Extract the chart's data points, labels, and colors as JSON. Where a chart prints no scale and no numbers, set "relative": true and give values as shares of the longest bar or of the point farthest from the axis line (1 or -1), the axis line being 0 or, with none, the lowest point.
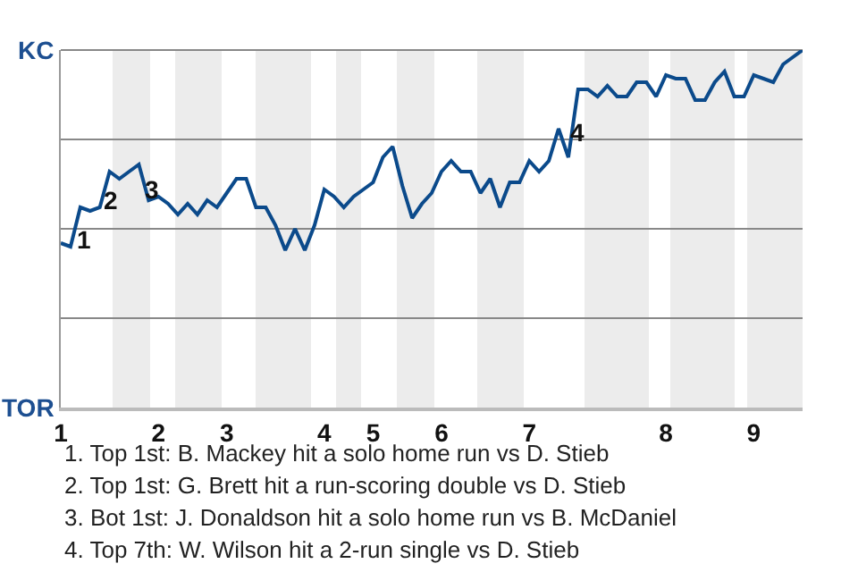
{
  "chart_data": {
    "type": "line",
    "relative": true,
    "categories": [
      "1",
      null,
      null,
      null,
      null,
      null,
      null,
      null,
      null,
      null,
      "2",
      null,
      null,
      null,
      null,
      null,
      null,
      "3",
      null,
      null,
      null,
      null,
      null,
      null,
      null,
      null,
      null,
      "4",
      null,
      null,
      null,
      null,
      "5",
      null,
      null,
      null,
      null,
      null,
      null,
      "6",
      null,
      null,
      null,
      null,
      null,
      null,
      null,
      null,
      "7",
      null,
      null,
      null,
      null,
      null,
      null,
      null,
      null,
      null,
      null,
      null,
      null,
      null,
      "8",
      null,
      null,
      null,
      null,
      null,
      null,
      null,
      null,
      "9",
      null,
      null,
      null,
      null,
      null
    ],
    "series": [
      {
        "color": "#0b4a8b",
        "values": [
          0.46,
          0.45,
          0.56,
          0.55,
          0.56,
          0.66,
          0.64,
          0.66,
          0.68,
          0.58,
          0.59,
          0.57,
          0.54,
          0.57,
          0.54,
          0.58,
          0.56,
          0.6,
          0.64,
          0.64,
          0.56,
          0.56,
          0.51,
          0.44,
          0.5,
          0.44,
          0.51,
          0.61,
          0.59,
          0.56,
          0.59,
          0.61,
          0.63,
          0.7,
          0.73,
          0.62,
          0.53,
          0.57,
          0.6,
          0.66,
          0.69,
          0.66,
          0.66,
          0.6,
          0.64,
          0.56,
          0.63,
          0.63,
          0.69,
          0.66,
          0.69,
          0.78,
          0.7,
          0.89,
          0.89,
          0.87,
          0.9,
          0.87,
          0.87,
          0.91,
          0.91,
          0.87,
          0.93,
          0.92,
          0.92,
          0.86,
          0.86,
          0.91,
          0.94,
          0.87,
          0.87,
          0.93,
          0.92,
          0.91,
          0.96,
          0.98,
          1
        ]
      }
    ],
    "grid": "y",
    "legend": false,
    "marker": "none",
    "line_style": "solid",
    "annotations": [
      "KC",
      "TOR",
      "1",
      "2",
      "3",
      "4",
      "1. Top 1st: B. Mackey hit a solo home run vs D. Stieb",
      "2. Top 1st: G. Brett hit a run-scoring double vs D. Stieb",
      "3. Bot 1st: J. Donaldson hit a solo home run vs B. McDaniel",
      "4. Top 7th: W. Wilson hit a 2-run single vs D. Stieb"
    ]
  }
}
